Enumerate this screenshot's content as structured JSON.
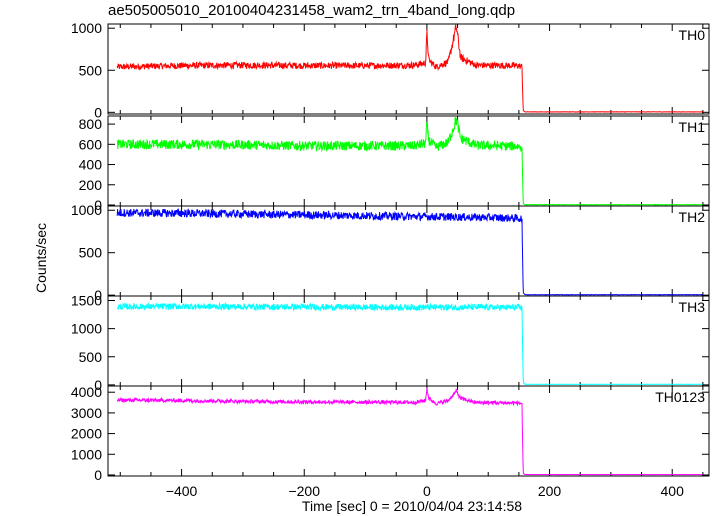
{
  "title": "ae505005010_20100404231458_wam2_trn_4band_long.qdp",
  "chart_data": {
    "type": "line",
    "title": "ae505005010_20100404231458_wam2_trn_4band_long.qdp",
    "xlabel": "Time [sec] 0 = 2010/04/04 23:14:58",
    "ylabel": "Counts/sec",
    "xlim": [
      -520,
      460
    ],
    "x_ticks": [
      -400,
      -200,
      0,
      200,
      400
    ],
    "x_tick_labels": [
      "−400",
      "−200",
      "0",
      "200",
      "400"
    ],
    "panels": [
      {
        "name": "TH0",
        "color": "#ff0000",
        "ylim": [
          -20,
          1050
        ],
        "y_ticks": [
          0,
          500,
          1000
        ],
        "y_tick_labels": [
          "0",
          "500",
          "1000"
        ],
        "series": [
          {
            "x": -505,
            "y": 540
          },
          {
            "x": -400,
            "y": 555
          },
          {
            "x": -300,
            "y": 560
          },
          {
            "x": -200,
            "y": 555
          },
          {
            "x": -100,
            "y": 555
          },
          {
            "x": -20,
            "y": 560
          },
          {
            "x": -2,
            "y": 590
          },
          {
            "x": 0,
            "y": 950
          },
          {
            "x": 3,
            "y": 620
          },
          {
            "x": 15,
            "y": 540
          },
          {
            "x": 35,
            "y": 600
          },
          {
            "x": 48,
            "y": 1020
          },
          {
            "x": 55,
            "y": 650
          },
          {
            "x": 80,
            "y": 560
          },
          {
            "x": 150,
            "y": 555
          },
          {
            "x": 155,
            "y": 540
          },
          {
            "x": 157,
            "y": 20
          },
          {
            "x": 160,
            "y": 5
          },
          {
            "x": 450,
            "y": 5
          }
        ]
      },
      {
        "name": "TH1",
        "color": "#00ff00",
        "ylim": [
          -10,
          880
        ],
        "y_ticks": [
          0,
          200,
          400,
          600,
          800
        ],
        "y_tick_labels": [
          "0",
          "200",
          "400",
          "600",
          "800"
        ],
        "series": [
          {
            "x": -505,
            "y": 600
          },
          {
            "x": -400,
            "y": 600
          },
          {
            "x": -300,
            "y": 595
          },
          {
            "x": -200,
            "y": 585
          },
          {
            "x": -100,
            "y": 585
          },
          {
            "x": -20,
            "y": 585
          },
          {
            "x": -2,
            "y": 610
          },
          {
            "x": 0,
            "y": 800
          },
          {
            "x": 3,
            "y": 640
          },
          {
            "x": 15,
            "y": 570
          },
          {
            "x": 35,
            "y": 620
          },
          {
            "x": 48,
            "y": 850
          },
          {
            "x": 55,
            "y": 660
          },
          {
            "x": 80,
            "y": 590
          },
          {
            "x": 150,
            "y": 580
          },
          {
            "x": 155,
            "y": 570
          },
          {
            "x": 157,
            "y": 15
          },
          {
            "x": 160,
            "y": 3
          },
          {
            "x": 450,
            "y": 3
          }
        ]
      },
      {
        "name": "TH2",
        "color": "#0000ff",
        "ylim": [
          -10,
          1050
        ],
        "y_ticks": [
          0,
          500,
          1000
        ],
        "y_tick_labels": [
          "0",
          "500",
          "1000"
        ],
        "series": [
          {
            "x": -505,
            "y": 970
          },
          {
            "x": -400,
            "y": 965
          },
          {
            "x": -300,
            "y": 955
          },
          {
            "x": -200,
            "y": 945
          },
          {
            "x": -100,
            "y": 935
          },
          {
            "x": 0,
            "y": 925
          },
          {
            "x": 100,
            "y": 915
          },
          {
            "x": 150,
            "y": 905
          },
          {
            "x": 155,
            "y": 900
          },
          {
            "x": 157,
            "y": 30
          },
          {
            "x": 160,
            "y": 5
          },
          {
            "x": 450,
            "y": 5
          }
        ]
      },
      {
        "name": "TH3",
        "color": "#00ffff",
        "ylim": [
          -20,
          1580
        ],
        "y_ticks": [
          0,
          500,
          1000,
          1500
        ],
        "y_tick_labels": [
          "0",
          "500",
          "1000",
          "1500"
        ],
        "series": [
          {
            "x": -505,
            "y": 1390
          },
          {
            "x": -400,
            "y": 1395
          },
          {
            "x": -300,
            "y": 1390
          },
          {
            "x": -200,
            "y": 1385
          },
          {
            "x": -100,
            "y": 1380
          },
          {
            "x": 0,
            "y": 1380
          },
          {
            "x": 100,
            "y": 1380
          },
          {
            "x": 150,
            "y": 1375
          },
          {
            "x": 155,
            "y": 1370
          },
          {
            "x": 157,
            "y": 40
          },
          {
            "x": 160,
            "y": 10
          },
          {
            "x": 450,
            "y": 10
          }
        ]
      },
      {
        "name": "TH0123",
        "color": "#ff00ff",
        "ylim": [
          -50,
          4300
        ],
        "y_ticks": [
          0,
          1000,
          2000,
          3000,
          4000
        ],
        "y_tick_labels": [
          "0",
          "1000",
          "2000",
          "3000",
          "4000"
        ],
        "series": [
          {
            "x": -505,
            "y": 3620
          },
          {
            "x": -400,
            "y": 3600
          },
          {
            "x": -300,
            "y": 3560
          },
          {
            "x": -200,
            "y": 3530
          },
          {
            "x": -100,
            "y": 3520
          },
          {
            "x": -20,
            "y": 3510
          },
          {
            "x": -2,
            "y": 3600
          },
          {
            "x": 0,
            "y": 4200
          },
          {
            "x": 3,
            "y": 3700
          },
          {
            "x": 15,
            "y": 3450
          },
          {
            "x": 35,
            "y": 3600
          },
          {
            "x": 48,
            "y": 4050
          },
          {
            "x": 55,
            "y": 3700
          },
          {
            "x": 80,
            "y": 3500
          },
          {
            "x": 150,
            "y": 3480
          },
          {
            "x": 155,
            "y": 3450
          },
          {
            "x": 157,
            "y": 80
          },
          {
            "x": 160,
            "y": 20
          },
          {
            "x": 450,
            "y": 20
          }
        ]
      }
    ],
    "noise_fraction": [
      0.07,
      0.08,
      0.05,
      0.04,
      0.025
    ],
    "grid": false,
    "legend": "none"
  }
}
